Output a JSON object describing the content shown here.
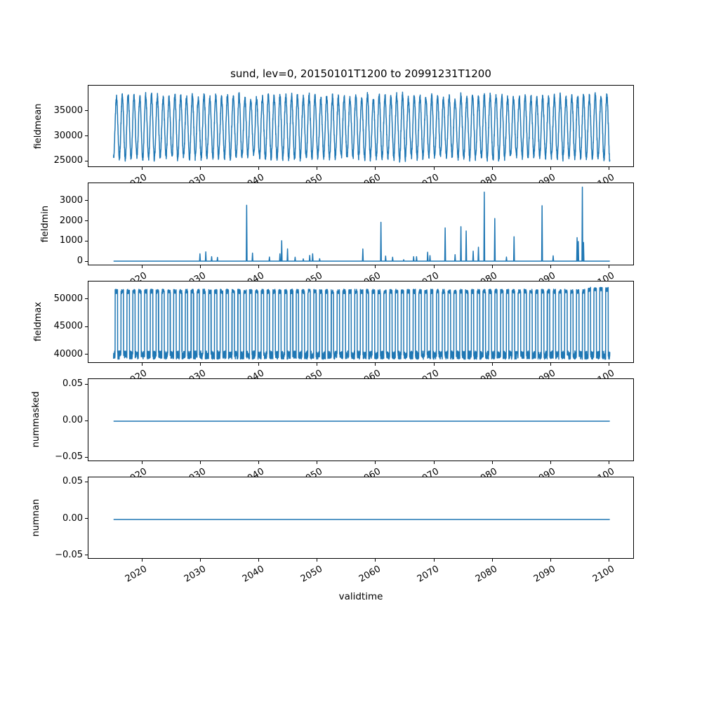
{
  "figure": {
    "title": "sund, lev=0, 20150101T1200 to 20991231T1200",
    "xlabel": "validtime",
    "line_color": "#1f77b4",
    "background": "#ffffff",
    "xlim": [
      2010.7,
      2104.25
    ],
    "x_data_range": [
      2015,
      2100
    ],
    "xticks": [
      {
        "year": 2020,
        "label": "2020"
      },
      {
        "year": 2030,
        "label": "2030"
      },
      {
        "year": 2040,
        "label": "2040"
      },
      {
        "year": 2050,
        "label": "2050"
      },
      {
        "year": 2060,
        "label": "2060"
      },
      {
        "year": 2070,
        "label": "2070"
      },
      {
        "year": 2080,
        "label": "2080"
      },
      {
        "year": 2090,
        "label": "2090"
      },
      {
        "year": 2100,
        "label": "2100"
      }
    ]
  },
  "chart_data": [
    {
      "type": "line",
      "ylabel": "fieldmean",
      "ylim": [
        23700,
        40200
      ],
      "yticks": [
        {
          "v": 25000,
          "label": "25000"
        },
        {
          "v": 30000,
          "label": "30000"
        },
        {
          "v": 35000,
          "label": "35000"
        }
      ],
      "pattern": "seasonal-wave",
      "base": 31900,
      "amplitude": 6000,
      "amplitude_jitter": 420,
      "noise": 650,
      "period_years": 1,
      "late_boost_from": 2096,
      "late_boost_factor": 1.07,
      "data_min": 24900,
      "data_max": 38900
    },
    {
      "type": "line",
      "ylabel": "fieldmin",
      "ylim": [
        -195,
        3880
      ],
      "yticks": [
        {
          "v": 0,
          "label": "0"
        },
        {
          "v": 1000,
          "label": "1000"
        },
        {
          "v": 2000,
          "label": "2000"
        },
        {
          "v": 3000,
          "label": "3000"
        }
      ],
      "pattern": "baseline-spikes",
      "baseline": 25,
      "spikes": [
        [
          2029.8,
          390
        ],
        [
          2030.8,
          485
        ],
        [
          2031.8,
          250
        ],
        [
          2032.8,
          215
        ],
        [
          2037.8,
          2790
        ],
        [
          2038.8,
          425
        ],
        [
          2041.7,
          230
        ],
        [
          2043.5,
          390
        ],
        [
          2043.8,
          1040
        ],
        [
          2044.8,
          635
        ],
        [
          2046.1,
          220
        ],
        [
          2047.5,
          140
        ],
        [
          2048.6,
          310
        ],
        [
          2049.1,
          390
        ],
        [
          2050.3,
          150
        ],
        [
          2057.7,
          630
        ],
        [
          2060.8,
          1950
        ],
        [
          2061.6,
          280
        ],
        [
          2062.8,
          220
        ],
        [
          2064.7,
          100
        ],
        [
          2066.4,
          250
        ],
        [
          2066.9,
          250
        ],
        [
          2068.8,
          470
        ],
        [
          2069.2,
          300
        ],
        [
          2071.8,
          1670
        ],
        [
          2073.5,
          350
        ],
        [
          2074.5,
          1730
        ],
        [
          2075.4,
          1520
        ],
        [
          2076.6,
          520
        ],
        [
          2077.5,
          715
        ],
        [
          2078.5,
          3440
        ],
        [
          2080.3,
          2135
        ],
        [
          2082.3,
          230
        ],
        [
          2083.6,
          1235
        ],
        [
          2088.4,
          2770
        ],
        [
          2090.3,
          290
        ],
        [
          2094.4,
          1190
        ],
        [
          2094.6,
          1000
        ],
        [
          2095.3,
          3690
        ],
        [
          2095.5,
          950
        ]
      ],
      "data_min": 0,
      "data_max": 3690
    },
    {
      "type": "line",
      "ylabel": "fieldmax",
      "ylim": [
        38400,
        53300
      ],
      "yticks": [
        {
          "v": 40000,
          "label": "40000"
        },
        {
          "v": 45000,
          "label": "45000"
        },
        {
          "v": 50000,
          "label": "50000"
        }
      ],
      "pattern": "seasonal-square",
      "low": 40000,
      "low_noise": 750,
      "high": 51500,
      "high_noise": 400,
      "high_fraction": 0.58,
      "late_boost_from": 2096,
      "late_boost_add": 350,
      "data_min": 39250,
      "data_max": 52300
    },
    {
      "type": "line",
      "ylabel": "nummasked",
      "ylim": [
        -0.055,
        0.0575
      ],
      "yticks": [
        {
          "v": -0.05,
          "label": "−0.05"
        },
        {
          "v": 0.0,
          "label": "0.00"
        },
        {
          "v": 0.05,
          "label": "0.05"
        }
      ],
      "pattern": "constant",
      "value": 0.0
    },
    {
      "type": "line",
      "ylabel": "numnan",
      "ylim": [
        -0.055,
        0.0575
      ],
      "yticks": [
        {
          "v": -0.05,
          "label": "−0.05"
        },
        {
          "v": 0.0,
          "label": "0.00"
        },
        {
          "v": 0.05,
          "label": "0.05"
        }
      ],
      "pattern": "constant",
      "value": 0.0
    }
  ]
}
